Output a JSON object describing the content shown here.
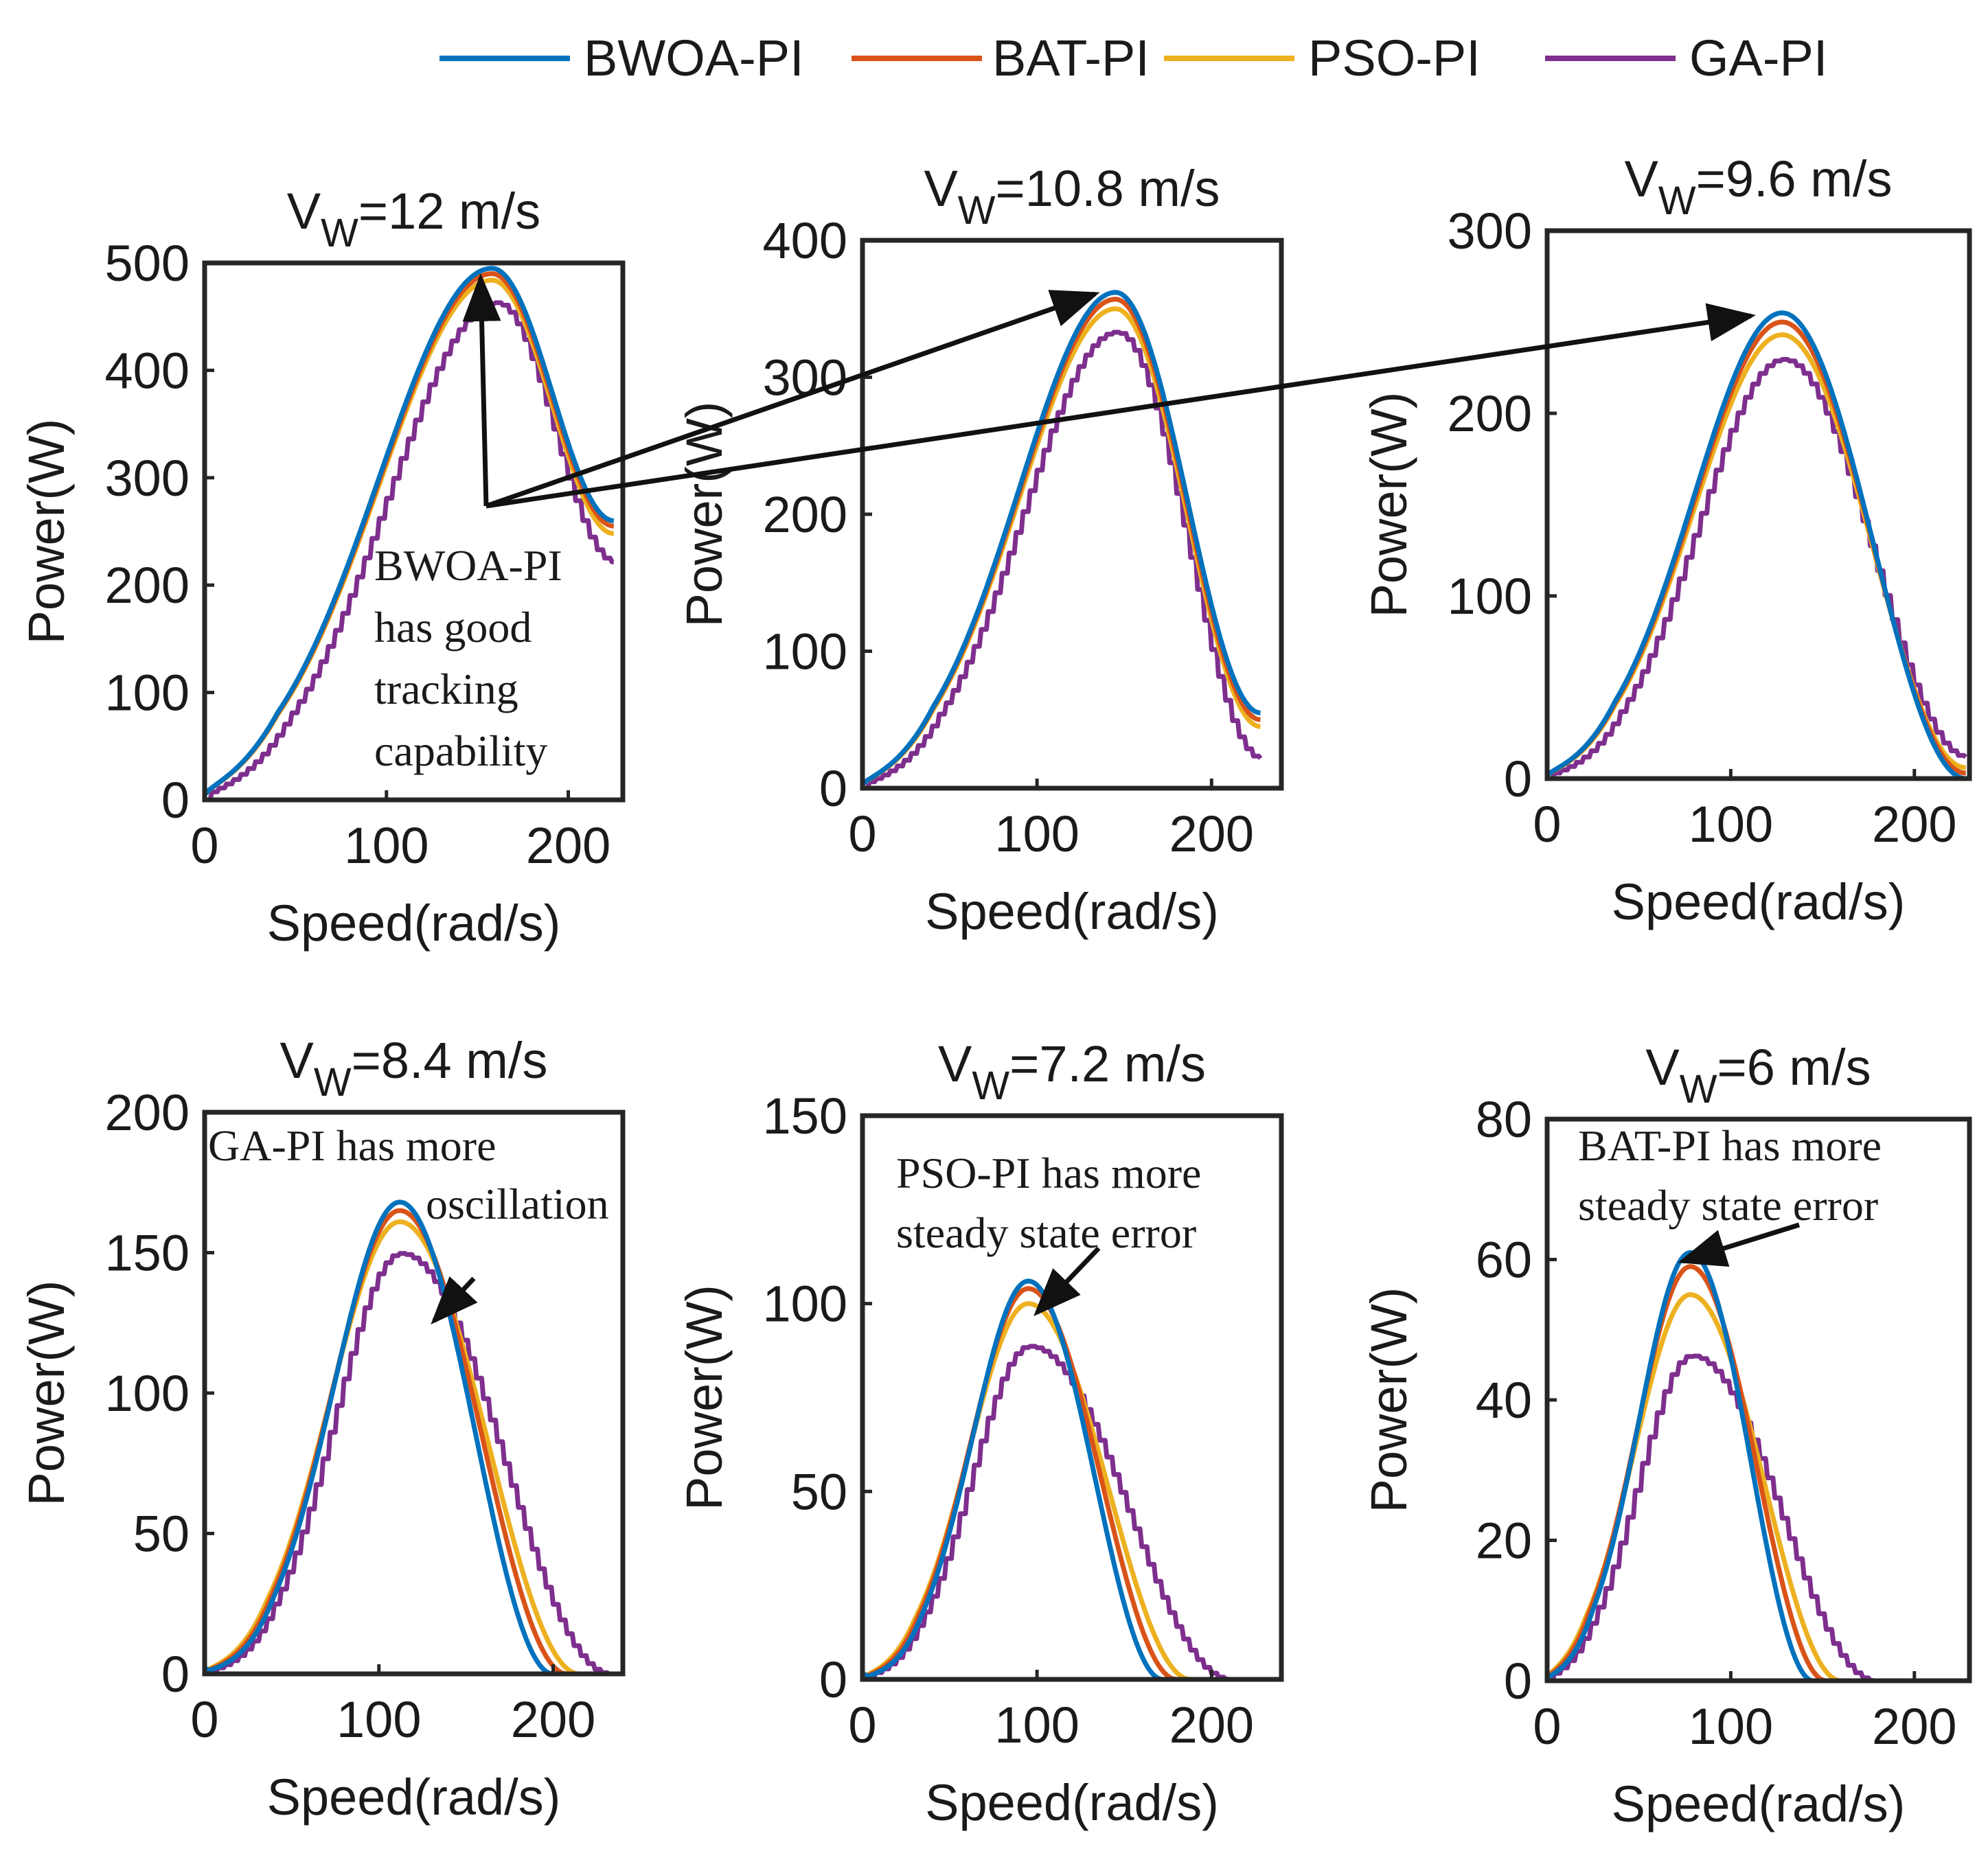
{
  "legend": {
    "entries": [
      {
        "name": "BWOA-PI",
        "color": "#0072BD"
      },
      {
        "name": "BAT-PI",
        "color": "#D95319"
      },
      {
        "name": "PSO-PI",
        "color": "#EDB120"
      },
      {
        "name": "GA-PI",
        "color": "#7E2F8E"
      }
    ],
    "placement": "top"
  },
  "chart_data": [
    {
      "type": "line",
      "title": {
        "main": "V",
        "sub": "W",
        "rest": "=12 m/s"
      },
      "xlabel": "Speed(rad/s)",
      "ylabel": "Power(W)",
      "xlim": [
        0,
        230
      ],
      "ylim": [
        0,
        500
      ],
      "xticks": [
        0,
        100,
        200
      ],
      "yticks": [
        0,
        100,
        200,
        300,
        400,
        500
      ],
      "x_end": 225,
      "series": [
        {
          "name": "BWOA-PI",
          "peak_x": 158,
          "peak_y": 495,
          "width": 62,
          "tail_x": 225,
          "tail_y": 260
        },
        {
          "name": "BAT-PI",
          "peak_x": 158,
          "peak_y": 490,
          "width": 62,
          "tail_x": 225,
          "tail_y": 255
        },
        {
          "name": "PSO-PI",
          "peak_x": 158,
          "peak_y": 484,
          "width": 62,
          "tail_x": 225,
          "tail_y": 248
        },
        {
          "name": "GA-PI",
          "peak_x": 160,
          "peak_y": 470,
          "width": 60,
          "tail_x": 225,
          "tail_y": 225
        }
      ],
      "annotation": {
        "lines": [
          "BWOA-PI",
          "has good",
          "tracking",
          "capability"
        ]
      }
    },
    {
      "type": "line",
      "title": {
        "main": "V",
        "sub": "W",
        "rest": "=10.8 m/s"
      },
      "xlabel": "Speed(rad/s)",
      "ylabel": "Power(W)",
      "xlim": [
        0,
        240
      ],
      "ylim": [
        0,
        400
      ],
      "xticks": [
        0,
        100,
        200
      ],
      "yticks": [
        0,
        100,
        200,
        300,
        400
      ],
      "x_end": 228,
      "series": [
        {
          "name": "BWOA-PI",
          "peak_x": 145,
          "peak_y": 362,
          "width": 55,
          "tail_x": 228,
          "tail_y": 55
        },
        {
          "name": "BAT-PI",
          "peak_x": 145,
          "peak_y": 357,
          "width": 55,
          "tail_x": 228,
          "tail_y": 50
        },
        {
          "name": "PSO-PI",
          "peak_x": 145,
          "peak_y": 350,
          "width": 55,
          "tail_x": 228,
          "tail_y": 45
        },
        {
          "name": "GA-PI",
          "peak_x": 145,
          "peak_y": 338,
          "width": 53,
          "tail_x": 228,
          "tail_y": 22
        }
      ]
    },
    {
      "type": "line",
      "title": {
        "main": "V",
        "sub": "W",
        "rest": "=9.6 m/s"
      },
      "xlabel": "Speed(rad/s)",
      "ylabel": "Power(W)",
      "xlim": [
        0,
        230
      ],
      "ylim": [
        0,
        300
      ],
      "xticks": [
        0,
        100,
        200
      ],
      "yticks": [
        0,
        100,
        200,
        300
      ],
      "x_end": 228,
      "series": [
        {
          "name": "BWOA-PI",
          "peak_x": 128,
          "peak_y": 255,
          "width": 48,
          "tail_x": 228,
          "tail_y": 0
        },
        {
          "name": "BAT-PI",
          "peak_x": 128,
          "peak_y": 250,
          "width": 48,
          "tail_x": 228,
          "tail_y": 3
        },
        {
          "name": "PSO-PI",
          "peak_x": 128,
          "peak_y": 243,
          "width": 48,
          "tail_x": 228,
          "tail_y": 6
        },
        {
          "name": "GA-PI",
          "peak_x": 128,
          "peak_y": 233,
          "width": 46,
          "tail_x": 228,
          "tail_y": 12
        }
      ]
    },
    {
      "type": "line",
      "title": {
        "main": "V",
        "sub": "W",
        "rest": "=8.4 m/s"
      },
      "xlabel": "Speed(rad/s)",
      "ylabel": "Power(W)",
      "xlim": [
        0,
        240
      ],
      "ylim": [
        0,
        200
      ],
      "xticks": [
        0,
        100,
        200
      ],
      "yticks": [
        0,
        50,
        100,
        150,
        200
      ],
      "x_end": 240,
      "series": [
        {
          "name": "BWOA-PI",
          "peak_x": 112,
          "peak_y": 168,
          "width": 38,
          "tail_x": 200,
          "tail_y": 0
        },
        {
          "name": "BAT-PI",
          "peak_x": 112,
          "peak_y": 165,
          "width": 39,
          "tail_x": 208,
          "tail_y": 0
        },
        {
          "name": "PSO-PI",
          "peak_x": 112,
          "peak_y": 161,
          "width": 40,
          "tail_x": 215,
          "tail_y": 0
        },
        {
          "name": "GA-PI",
          "peak_x": 112,
          "peak_y": 152,
          "width": 38,
          "tail_x": 232,
          "tail_y": 0
        }
      ],
      "annotation": {
        "lines": [
          "GA-PI has more",
          "oscillation"
        ]
      }
    },
    {
      "type": "line",
      "title": {
        "main": "V",
        "sub": "W",
        "rest": "=7.2 m/s"
      },
      "xlabel": "Speed(rad/s)",
      "ylabel": "Power(W)",
      "xlim": [
        0,
        240
      ],
      "ylim": [
        0,
        150
      ],
      "xticks": [
        0,
        100,
        200
      ],
      "yticks": [
        0,
        50,
        100,
        150
      ],
      "x_end": 240,
      "series": [
        {
          "name": "BWOA-PI",
          "peak_x": 95,
          "peak_y": 106,
          "width": 32,
          "tail_x": 172,
          "tail_y": 0
        },
        {
          "name": "BAT-PI",
          "peak_x": 95,
          "peak_y": 104,
          "width": 33,
          "tail_x": 180,
          "tail_y": 0
        },
        {
          "name": "PSO-PI",
          "peak_x": 95,
          "peak_y": 100,
          "width": 34,
          "tail_x": 188,
          "tail_y": 0
        },
        {
          "name": "GA-PI",
          "peak_x": 95,
          "peak_y": 90,
          "width": 33,
          "tail_x": 210,
          "tail_y": 0
        }
      ],
      "annotation": {
        "lines": [
          "PSO-PI has more",
          "steady state error"
        ]
      }
    },
    {
      "type": "line",
      "title": {
        "main": "V",
        "sub": "W",
        "rest": "=6 m/s"
      },
      "xlabel": "Speed(rad/s)",
      "ylabel": "Power(W)",
      "xlim": [
        0,
        230
      ],
      "ylim": [
        0,
        80
      ],
      "xticks": [
        0,
        100,
        200
      ],
      "yticks": [
        0,
        20,
        40,
        60,
        80
      ],
      "x_end": 225,
      "series": [
        {
          "name": "BWOA-PI",
          "peak_x": 78,
          "peak_y": 61,
          "width": 28,
          "tail_x": 145,
          "tail_y": 0
        },
        {
          "name": "BAT-PI",
          "peak_x": 78,
          "peak_y": 59,
          "width": 29,
          "tail_x": 152,
          "tail_y": 0
        },
        {
          "name": "PSO-PI",
          "peak_x": 78,
          "peak_y": 55,
          "width": 30,
          "tail_x": 160,
          "tail_y": 0
        },
        {
          "name": "GA-PI",
          "peak_x": 78,
          "peak_y": 47,
          "width": 29,
          "tail_x": 178,
          "tail_y": 0
        }
      ],
      "annotation": {
        "lines": [
          "BAT-PI has more",
          "steady state error"
        ]
      }
    }
  ]
}
